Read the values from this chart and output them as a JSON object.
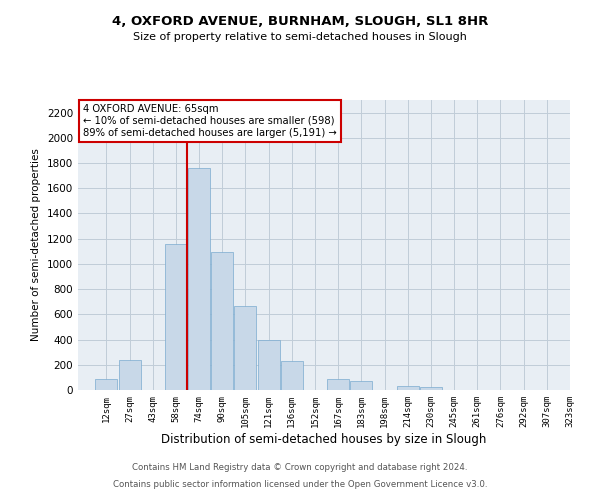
{
  "title": "4, OXFORD AVENUE, BURNHAM, SLOUGH, SL1 8HR",
  "subtitle": "Size of property relative to semi-detached houses in Slough",
  "xlabel": "Distribution of semi-detached houses by size in Slough",
  "ylabel": "Number of semi-detached properties",
  "bin_labels": [
    "12sqm",
    "27sqm",
    "43sqm",
    "58sqm",
    "74sqm",
    "90sqm",
    "105sqm",
    "121sqm",
    "136sqm",
    "152sqm",
    "167sqm",
    "183sqm",
    "198sqm",
    "214sqm",
    "230sqm",
    "245sqm",
    "261sqm",
    "276sqm",
    "292sqm",
    "307sqm",
    "323sqm"
  ],
  "bar_heights": [
    90,
    240,
    0,
    1160,
    1760,
    1095,
    670,
    400,
    230,
    0,
    85,
    70,
    0,
    35,
    20,
    0,
    0,
    0,
    0,
    0,
    0
  ],
  "bar_color": "#c8d8e8",
  "bar_edge_color": "#7aabcf",
  "subject_vline_x": 3.47,
  "subject_vline_color": "#cc0000",
  "annotation_title": "4 OXFORD AVENUE: 65sqm",
  "annotation_line1": "← 10% of semi-detached houses are smaller (598)",
  "annotation_line2": "89% of semi-detached houses are larger (5,191) →",
  "annotation_box_color": "#ffffff",
  "annotation_box_edge": "#cc0000",
  "ylim": [
    0,
    2300
  ],
  "yticks": [
    0,
    200,
    400,
    600,
    800,
    1000,
    1200,
    1400,
    1600,
    1800,
    2000,
    2200
  ],
  "grid_color": "#c0ccd8",
  "footer_line1": "Contains HM Land Registry data © Crown copyright and database right 2024.",
  "footer_line2": "Contains public sector information licensed under the Open Government Licence v3.0.",
  "bg_color": "#e8eef4"
}
